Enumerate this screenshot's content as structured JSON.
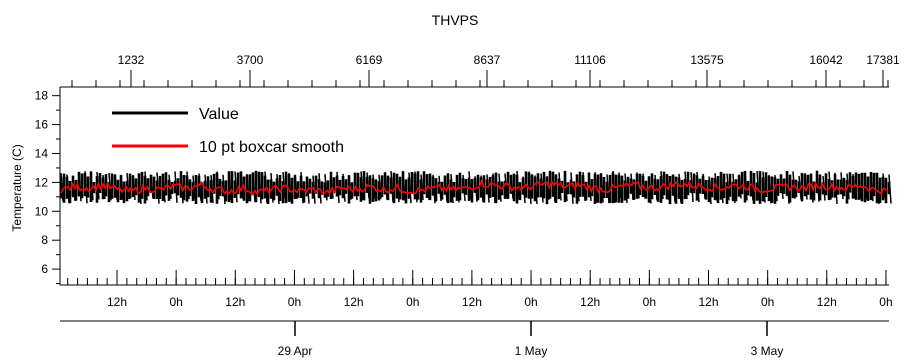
{
  "chart_data": {
    "type": "line",
    "title": "THVPS",
    "ylabel": "Temperature (C)",
    "xlabel": "",
    "ylim": [
      4.9,
      18.6
    ],
    "y_ticks": [
      6,
      8,
      10,
      12,
      14,
      16,
      18
    ],
    "x_top_ticks": [
      "1232",
      "3700",
      "6169",
      "8637",
      "11106",
      "13575",
      "16042",
      "17381"
    ],
    "x_hour_ticks": [
      "12h",
      "0h",
      "12h",
      "0h",
      "12h",
      "0h",
      "12h",
      "0h",
      "12h",
      "0h",
      "12h",
      "0h",
      "12h",
      "0h"
    ],
    "x_date_ticks": [
      "29 Apr",
      "1 May",
      "3 May"
    ],
    "grid": false,
    "legend_position": "top-left",
    "series": [
      {
        "name": "Value",
        "color": "#000000",
        "band": [
          10.5,
          12.8
        ]
      },
      {
        "name": "10 pt boxcar smooth",
        "color": "#ff0000",
        "values": [
          11.5,
          11.7,
          11.6,
          11.8,
          11.5,
          11.4,
          11.6,
          11.5,
          11.7,
          11.6,
          11.8,
          11.5,
          11.4,
          11.6,
          11.3,
          11.5,
          11.6,
          11.4,
          11.5,
          11.3,
          11.6,
          11.5,
          11.7,
          11.5,
          11.6,
          11.4,
          11.5,
          11.6,
          11.5,
          11.6,
          11.9,
          11.8,
          11.7,
          11.6,
          11.8,
          11.9,
          11.7,
          11.8,
          11.6,
          11.5,
          11.7,
          11.8,
          11.6,
          11.7,
          11.9,
          11.8,
          11.7,
          11.6,
          11.8,
          11.7,
          11.5,
          11.6,
          11.7,
          11.6,
          11.8,
          11.7,
          11.6,
          11.8,
          11.5,
          11.4
        ]
      }
    ]
  }
}
